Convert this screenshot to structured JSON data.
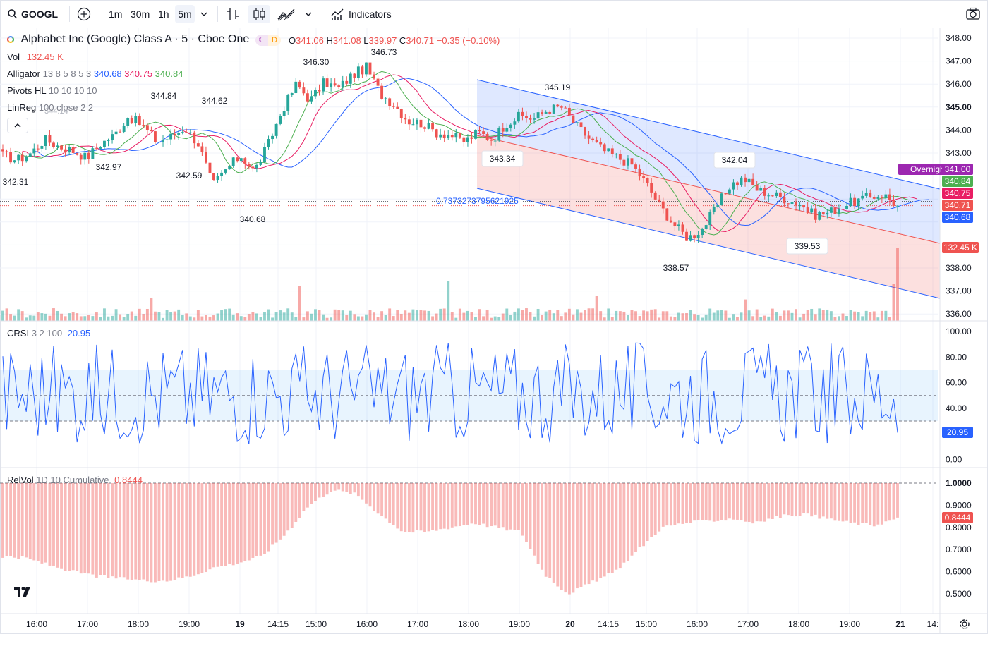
{
  "toolbar": {
    "symbol": "GOOGL",
    "intervals": [
      "1m",
      "30m",
      "1h",
      "5m"
    ],
    "active_interval": "5m",
    "indicators_label": "Indicators"
  },
  "legend": {
    "title": "Alphabet Inc (Google) Class A · 5 · Cboe One",
    "badge_d": "D",
    "ohlc": {
      "o_label": "O",
      "o": "341.06",
      "h_label": "H",
      "h": "341.08",
      "l_label": "L",
      "l": "339.97",
      "c_label": "C",
      "c": "340.71",
      "chg": "−0.35 (−0.10%)"
    },
    "vol_label": "Vol",
    "vol_value": "132.45 K",
    "alligator_label": "Alligator",
    "alligator_params": "13 8 5 8 5 3",
    "alligator_values": [
      "340.68",
      "340.75",
      "340.84"
    ],
    "pivots_label": "Pivots HL",
    "pivots_params": "10 10 10 10",
    "linreg_label": "LinReg",
    "linreg_params": "100 close 2 2",
    "linreg_ghost": "344.14",
    "channel_value": "0.7373273795621925"
  },
  "main_price_axis": [
    "348.00",
    "347.00",
    "346.00",
    "345.00",
    "344.00",
    "343.00",
    "342.00",
    "341.00",
    "340.00",
    "339.00",
    "338.00",
    "337.00",
    "336.00"
  ],
  "price_labels": {
    "overnight": "Overnight",
    "overnight_price": "341.00",
    "alligator_lips": "340.84",
    "alligator_teeth": "340.75",
    "last_price": "340.71",
    "alligator_jaw": "340.68",
    "volume": "132.45 K"
  },
  "pivot_labels": [
    "342.31",
    "342.97",
    "344.84",
    "342.59",
    "344.62",
    "340.68",
    "346.30",
    "346.73",
    "343.34",
    "345.19",
    "338.57",
    "342.04",
    "339.53"
  ],
  "crsi": {
    "label": "CRSI",
    "params": "3 2 100",
    "value": "20.95",
    "axis": [
      "100.00",
      "80.00",
      "60.00",
      "40.00",
      "0.00"
    ]
  },
  "relvol": {
    "label": "RelVol",
    "params": "1D 10 Cumulative",
    "value": "0.8444",
    "axis": [
      "1.0000",
      "0.9000",
      "0.8000",
      "0.7000",
      "0.6000",
      "0.5000"
    ]
  },
  "time_axis": [
    "16:00",
    "17:00",
    "18:00",
    "19:00",
    "19",
    "14:15",
    "15:00",
    "16:00",
    "17:00",
    "18:00",
    "19:00",
    "20",
    "14:15",
    "15:00",
    "16:00",
    "17:00",
    "18:00",
    "19:00",
    "21",
    "14:"
  ],
  "colors": {
    "up": "#26a69a",
    "down": "#ef5350",
    "blue": "#2962ff",
    "red_line": "#e91e63",
    "green_line": "#4caf50",
    "overnight": "#9c27b0"
  },
  "chart_data": {
    "type": "candlestick",
    "symbol": "GOOGL",
    "title": "Alphabet Inc (Google) Class A · 5 · Cboe One",
    "ylim": [
      335.7,
      348.3
    ],
    "x_ticks": [
      "16:00",
      "17:00",
      "18:00",
      "19:00",
      "19",
      "14:15",
      "15:00",
      "16:00",
      "17:00",
      "18:00",
      "19:00",
      "20",
      "14:15",
      "15:00",
      "16:00",
      "17:00",
      "18:00",
      "19:00",
      "21"
    ],
    "close_path": [
      342.9,
      342.7,
      343.0,
      343.6,
      343.3,
      343.1,
      342.8,
      343.4,
      343.8,
      344.6,
      344.2,
      343.5,
      343.7,
      344.1,
      343.4,
      341.6,
      342.3,
      342.9,
      342.2,
      343.4,
      344.9,
      346.0,
      345.3,
      346.1,
      345.8,
      346.4,
      346.73,
      345.6,
      345.1,
      344.4,
      344.3,
      343.9,
      343.8,
      343.5,
      343.9,
      343.6,
      344.3,
      344.6,
      344.5,
      344.9,
      345.0,
      344.2,
      343.6,
      343.1,
      342.8,
      342.5,
      341.7,
      340.7,
      339.9,
      339.3,
      339.7,
      340.6,
      341.6,
      341.9,
      341.4,
      341.2,
      341.0,
      340.8,
      340.3,
      340.4,
      340.7,
      340.9,
      341.1,
      341.2,
      340.71
    ],
    "volume_spike_last": "132.45 K"
  }
}
